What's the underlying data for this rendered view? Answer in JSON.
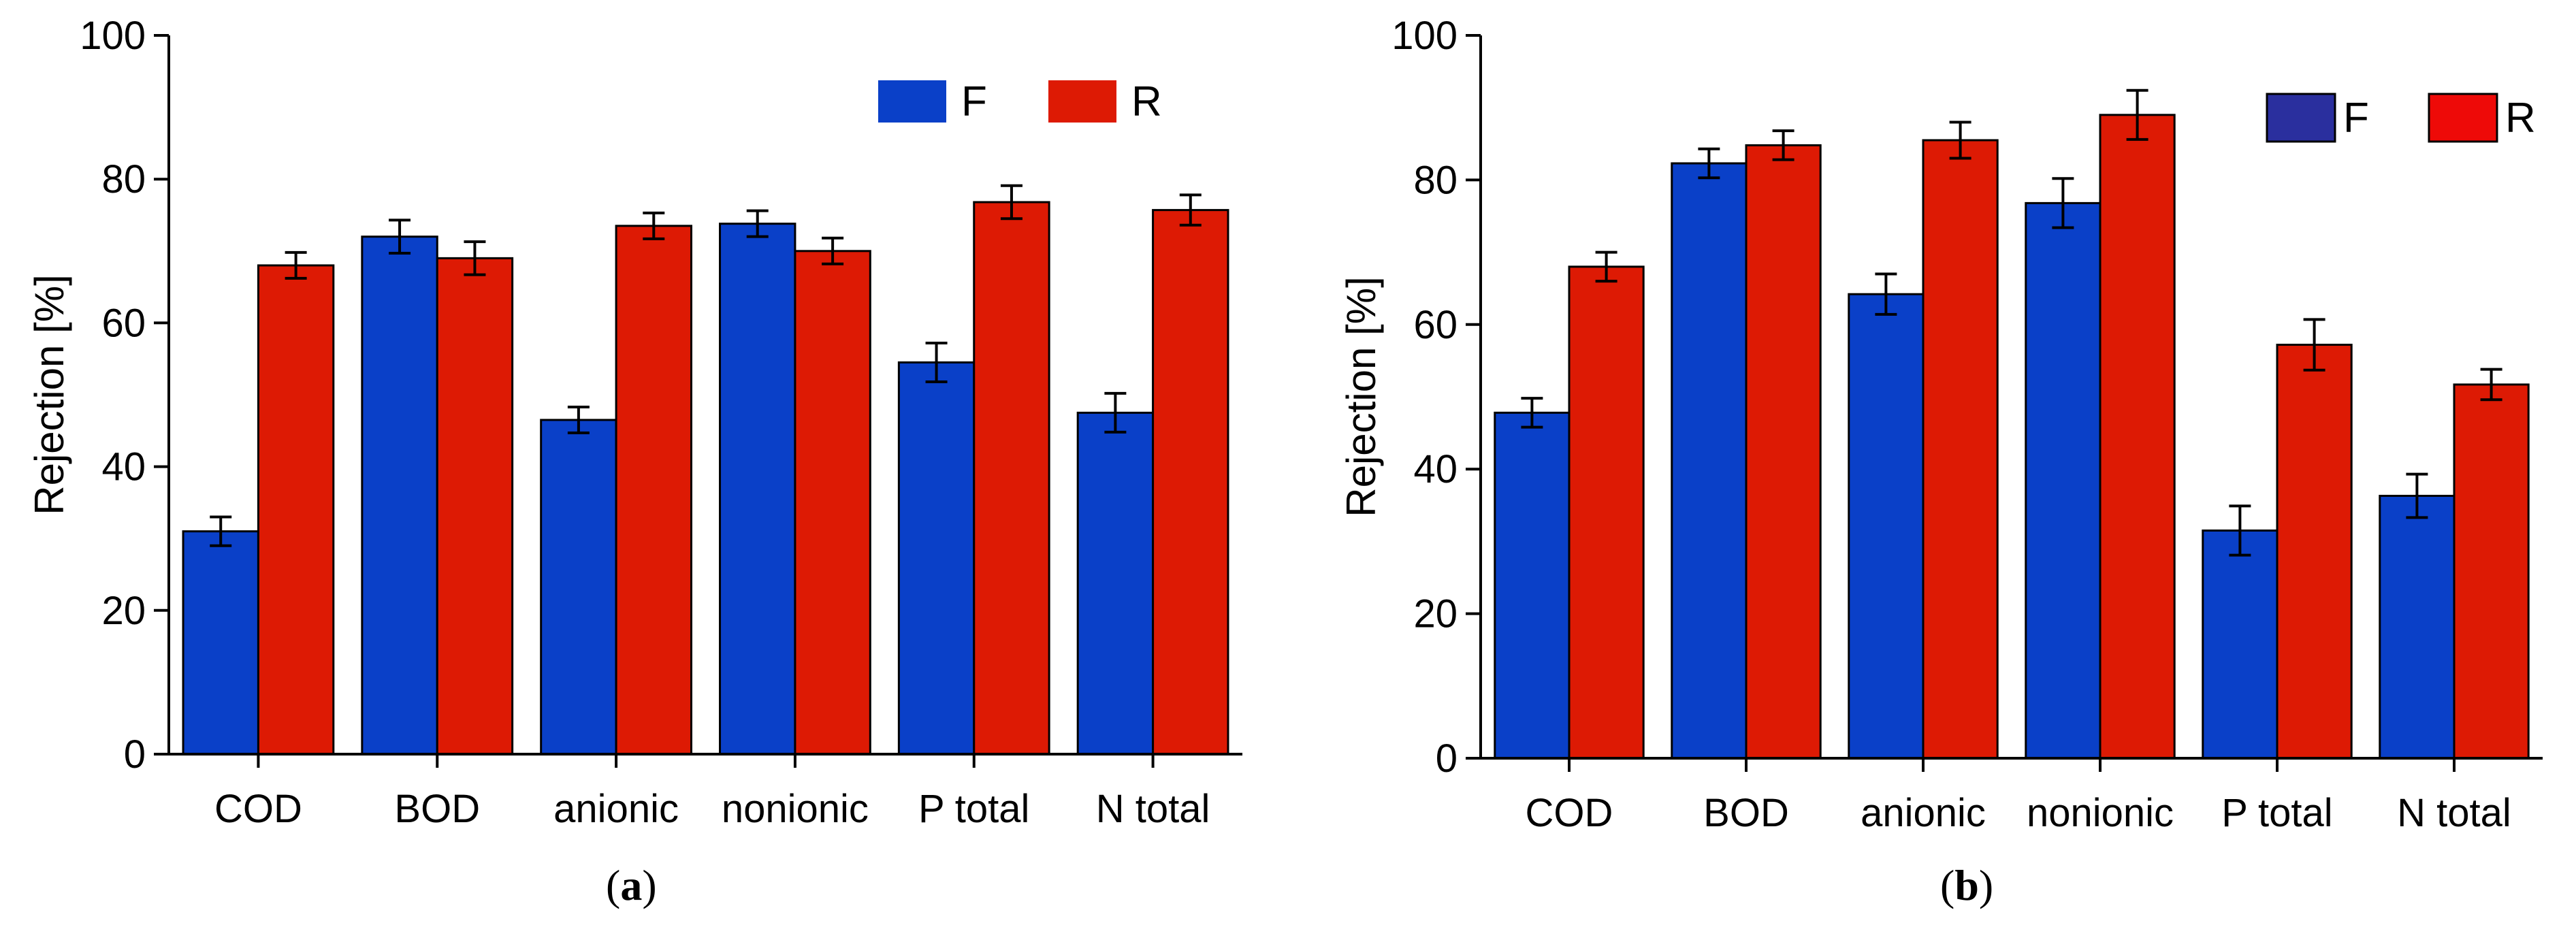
{
  "chart_data": [
    {
      "type": "bar",
      "panel": "a",
      "caption_open": "(",
      "caption_label": "a",
      "caption_close": ")",
      "categories": [
        "COD",
        "BOD",
        "anionic",
        "nonionic",
        "P total",
        "N total"
      ],
      "series": [
        {
          "name": "F",
          "color": "#0a40c8",
          "values": [
            31,
            72,
            46.5,
            73.8,
            54.5,
            47.5
          ],
          "errors": [
            2,
            2.3,
            1.8,
            1.8,
            2.7,
            2.7
          ]
        },
        {
          "name": "R",
          "color": "#dd1a04",
          "values": [
            68,
            69,
            73.5,
            70,
            76.8,
            75.7
          ],
          "errors": [
            1.8,
            2.3,
            1.8,
            1.8,
            2.3,
            2.1
          ]
        }
      ],
      "xlabel": "",
      "ylabel": "Rejection [%]",
      "ylim": [
        0,
        100
      ],
      "yticks": [
        "0",
        "20",
        "40",
        "60",
        "80",
        "100"
      ],
      "legend_position": "top-right",
      "grid": false
    },
    {
      "type": "bar",
      "panel": "b",
      "caption_open": "(",
      "caption_label": "b",
      "caption_close": ")",
      "categories": [
        "COD",
        "BOD",
        "anionic",
        "nonionic",
        "P total",
        "N total"
      ],
      "series": [
        {
          "name": "F",
          "color": "#0a40c8",
          "legend_color": "#2a2f9e",
          "values": [
            47.8,
            82.3,
            64.2,
            76.8,
            31.5,
            36.3
          ],
          "errors": [
            2,
            2,
            2.8,
            3.4,
            3.4,
            3
          ]
        },
        {
          "name": "R",
          "color": "#dd1a04",
          "legend_color": "#ee0a08",
          "values": [
            68,
            84.8,
            85.5,
            89,
            57.2,
            51.7
          ],
          "errors": [
            2,
            2,
            2.5,
            3.4,
            3.5,
            2.1
          ]
        }
      ],
      "xlabel": "",
      "ylabel": "Rejection [%]",
      "ylim": [
        0,
        100
      ],
      "yticks": [
        "0",
        "20",
        "40",
        "60",
        "80",
        "100"
      ],
      "legend_position": "top-right",
      "grid": false
    }
  ]
}
